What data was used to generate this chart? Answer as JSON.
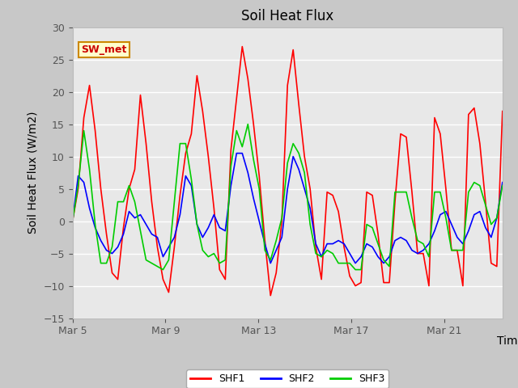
{
  "title": "Soil Heat Flux",
  "xlabel": "Time",
  "ylabel": "Soil Heat Flux (W/m2)",
  "ylim": [
    -15,
    30
  ],
  "yticks": [
    -15,
    -10,
    -5,
    0,
    5,
    10,
    15,
    20,
    25,
    30
  ],
  "xtick_labels": [
    "Mar 5",
    "Mar 9",
    "Mar 13",
    "Mar 17",
    "Mar 21"
  ],
  "xtick_positions": [
    0,
    4,
    8,
    12,
    16
  ],
  "xlim": [
    0,
    18.5
  ],
  "legend_labels": [
    "SHF1",
    "SHF2",
    "SHF3"
  ],
  "legend_colors": [
    "#ff0000",
    "#0000ff",
    "#00cc00"
  ],
  "line_width": 1.2,
  "annotation_text": "SW_met",
  "annotation_bg": "#ffffcc",
  "annotation_border": "#cc8800",
  "fig_facecolor": "#c8c8c8",
  "ax_facecolor": "#e8e8e8",
  "grid_color": "#ffffff",
  "title_fontsize": 12,
  "axis_label_fontsize": 10,
  "tick_fontsize": 9,
  "shf1": [
    0.0,
    5.0,
    16.0,
    21.0,
    14.0,
    5.0,
    -2.0,
    -8.0,
    -9.0,
    -1.0,
    5.0,
    8.0,
    19.5,
    12.0,
    3.0,
    -4.0,
    -9.0,
    -11.0,
    -4.0,
    4.0,
    10.5,
    13.5,
    22.5,
    17.0,
    10.0,
    2.0,
    -7.5,
    -9.0,
    11.0,
    19.0,
    27.0,
    22.0,
    15.0,
    7.0,
    -3.0,
    -11.5,
    -8.0,
    0.0,
    21.0,
    26.5,
    18.0,
    10.0,
    5.0,
    -4.0,
    -9.0,
    4.5,
    4.0,
    1.5,
    -4.0,
    -8.5,
    -10.0,
    -9.5,
    4.5,
    4.0,
    -2.0,
    -9.5,
    -9.5,
    3.0,
    13.5,
    13.0,
    4.5,
    -5.0,
    -5.0,
    -10.0,
    16.0,
    13.5,
    5.0,
    -4.5,
    -4.5,
    -10.0,
    16.5,
    17.5,
    12.0,
    3.0,
    -6.5,
    -7.0,
    17.0
  ],
  "shf2": [
    0.0,
    7.0,
    6.0,
    2.0,
    -1.0,
    -3.0,
    -4.5,
    -5.0,
    -4.0,
    -2.0,
    1.5,
    0.5,
    1.0,
    -0.5,
    -2.0,
    -2.5,
    -5.5,
    -4.0,
    -2.5,
    1.0,
    7.0,
    5.5,
    -0.5,
    -2.5,
    -1.0,
    1.0,
    -1.0,
    -1.5,
    5.5,
    10.5,
    10.5,
    7.5,
    3.5,
    0.0,
    -3.5,
    -6.5,
    -4.5,
    -2.5,
    5.0,
    10.0,
    8.0,
    5.0,
    2.0,
    -3.5,
    -5.5,
    -3.5,
    -3.5,
    -3.0,
    -3.5,
    -5.0,
    -6.5,
    -5.5,
    -3.5,
    -4.0,
    -5.5,
    -6.5,
    -5.5,
    -3.0,
    -2.5,
    -3.0,
    -4.5,
    -5.0,
    -4.5,
    -3.5,
    -1.5,
    1.0,
    1.5,
    -0.5,
    -2.5,
    -3.5,
    -1.5,
    1.0,
    1.5,
    -1.0,
    -2.5,
    0.5,
    6.0
  ],
  "shf3": [
    0.0,
    5.5,
    14.0,
    8.0,
    -0.5,
    -6.5,
    -6.5,
    -4.0,
    3.0,
    3.0,
    5.5,
    3.0,
    -1.5,
    -6.0,
    -6.5,
    -7.0,
    -7.5,
    -6.0,
    3.0,
    12.0,
    12.0,
    6.5,
    -0.5,
    -4.5,
    -5.5,
    -5.0,
    -6.5,
    -6.0,
    8.5,
    14.0,
    11.5,
    15.0,
    9.5,
    5.0,
    -4.5,
    -6.0,
    -3.0,
    0.5,
    9.0,
    12.0,
    10.5,
    7.5,
    -0.5,
    -5.0,
    -5.5,
    -4.5,
    -5.0,
    -6.5,
    -6.5,
    -6.5,
    -7.5,
    -7.5,
    -0.5,
    -1.0,
    -3.5,
    -6.0,
    -7.0,
    4.5,
    4.5,
    4.5,
    0.5,
    -3.0,
    -3.5,
    -5.5,
    4.5,
    4.5,
    0.5,
    -4.5,
    -4.5,
    -4.5,
    4.5,
    6.0,
    5.5,
    2.5,
    -0.5,
    0.5,
    5.5
  ]
}
